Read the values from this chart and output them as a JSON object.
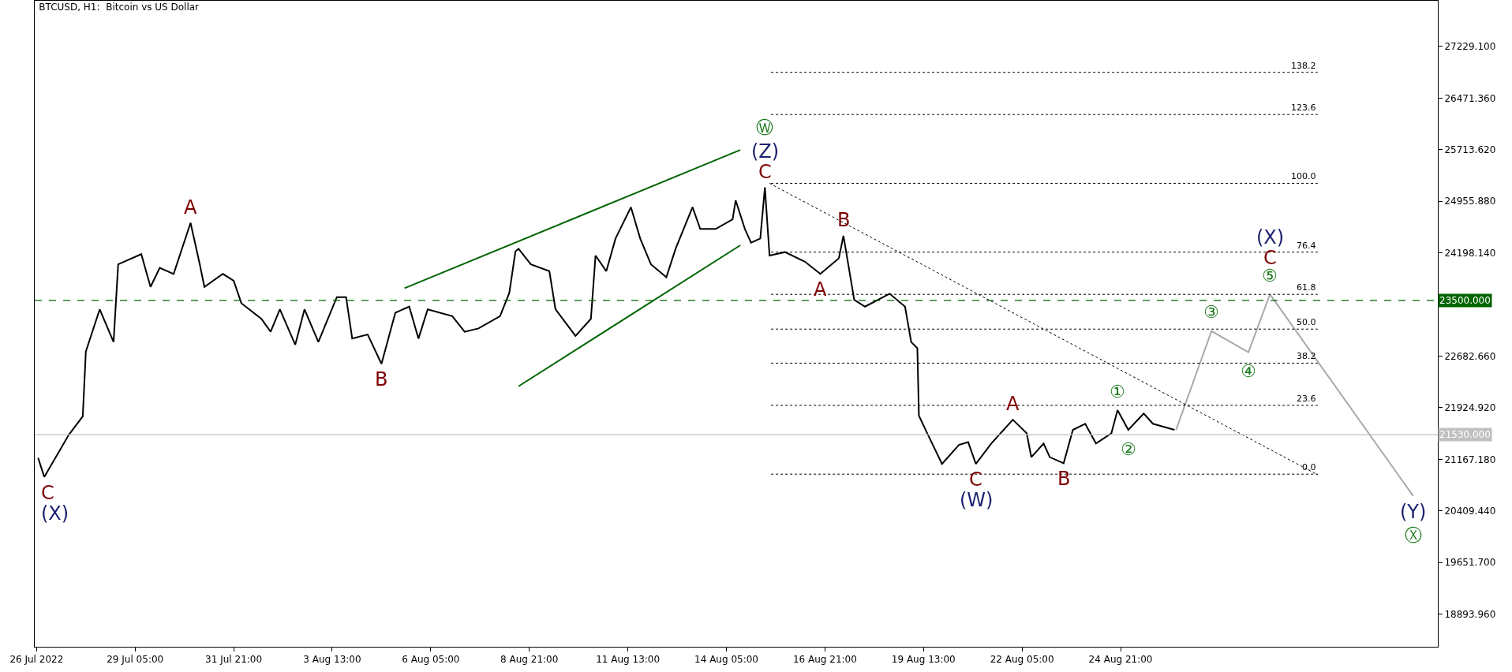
{
  "chart_data": {
    "type": "line",
    "title": "BTCUSD, H1:  Bitcoin vs US Dollar",
    "xlim": [
      "2022-07-26T11:48",
      "2022-09-02T11:00"
    ],
    "ylim": [
      18416,
      27900
    ],
    "xticks": [
      {
        "value": "2022-07-26T13:00",
        "label": "26 Jul 2022"
      },
      {
        "value": "2022-07-29T05:00",
        "label": "29 Jul 05:00"
      },
      {
        "value": "2022-07-31T21:00",
        "label": "31 Jul 21:00"
      },
      {
        "value": "2022-08-03T13:00",
        "label": "3 Aug 13:00"
      },
      {
        "value": "2022-08-06T05:00",
        "label": "6 Aug 05:00"
      },
      {
        "value": "2022-08-08T21:00",
        "label": "8 Aug 21:00"
      },
      {
        "value": "2022-08-11T13:00",
        "label": "11 Aug 13:00"
      },
      {
        "value": "2022-08-14T05:00",
        "label": "14 Aug 05:00"
      },
      {
        "value": "2022-08-16T21:00",
        "label": "16 Aug 21:00"
      },
      {
        "value": "2022-08-19T13:00",
        "label": "19 Aug 13:00"
      },
      {
        "value": "2022-08-22T05:00",
        "label": "22 Aug 05:00"
      },
      {
        "value": "2022-08-24T21:00",
        "label": "24 Aug 21:00"
      }
    ],
    "yticks": [
      {
        "value": 18893.96,
        "label": "18893.960"
      },
      {
        "value": 19651.7,
        "label": "19651.700"
      },
      {
        "value": 20409.44,
        "label": "20409.440"
      },
      {
        "value": 21167.18,
        "label": "21167.180"
      },
      {
        "value": 21924.92,
        "label": "21924.920"
      },
      {
        "value": 22682.66,
        "label": "22682.660"
      },
      {
        "value": 24198.14,
        "label": "24198.140"
      },
      {
        "value": 24955.88,
        "label": "24955.880"
      },
      {
        "value": 25713.62,
        "label": "25713.620"
      },
      {
        "value": 26471.36,
        "label": "26471.360"
      },
      {
        "value": 27229.1,
        "label": "27229.100"
      }
    ],
    "grid": false,
    "legend": false,
    "marker": "none",
    "series": [
      {
        "color": "#000000",
        "line_style": "solid",
        "x": [
          "2022-07-26T14:00",
          "2022-07-26T18:00",
          "2022-07-27T10:00",
          "2022-07-27T19:00",
          "2022-07-27T21:00",
          "2022-07-28T06:00",
          "2022-07-28T15:00",
          "2022-07-28T18:00",
          "2022-07-29T09:00",
          "2022-07-29T15:00",
          "2022-07-29T21:00",
          "2022-07-30T06:00",
          "2022-07-30T17:00",
          "2022-07-30T23:00",
          "2022-07-31T02:00",
          "2022-07-31T14:00",
          "2022-07-31T21:00",
          "2022-08-01T02:00",
          "2022-08-01T15:00",
          "2022-08-01T21:00",
          "2022-08-02T03:00",
          "2022-08-02T13:00",
          "2022-08-02T19:00",
          "2022-08-03T04:00",
          "2022-08-03T16:00",
          "2022-08-03T22:00",
          "2022-08-04T02:00",
          "2022-08-04T12:00",
          "2022-08-04T21:00",
          "2022-08-05T06:00",
          "2022-08-05T15:00",
          "2022-08-05T21:00",
          "2022-08-06T03:00",
          "2022-08-06T19:00",
          "2022-08-07T03:00",
          "2022-08-07T12:00",
          "2022-08-08T02:00",
          "2022-08-08T08:00",
          "2022-08-08T12:00",
          "2022-08-08T14:00",
          "2022-08-08T22:00",
          "2022-08-09T10:00",
          "2022-08-09T14:00",
          "2022-08-10T03:00",
          "2022-08-10T13:00",
          "2022-08-10T16:00",
          "2022-08-10T23:00",
          "2022-08-11T05:00",
          "2022-08-11T15:00",
          "2022-08-11T21:00",
          "2022-08-12T04:00",
          "2022-08-12T14:00",
          "2022-08-12T20:00",
          "2022-08-13T07:00",
          "2022-08-13T12:00",
          "2022-08-13T22:00",
          "2022-08-14T09:00",
          "2022-08-14T11:00",
          "2022-08-14T17:00",
          "2022-08-14T21:00",
          "2022-08-15T03:00",
          "2022-08-15T06:00",
          "2022-08-15T09:00",
          "2022-08-15T19:00",
          "2022-08-16T08:00",
          "2022-08-16T18:00",
          "2022-08-17T06:00",
          "2022-08-17T09:00",
          "2022-08-17T16:00",
          "2022-08-17T23:00",
          "2022-08-18T15:00",
          "2022-08-19T01:00",
          "2022-08-19T05:00",
          "2022-08-19T09:00",
          "2022-08-19T10:00",
          "2022-08-19T15:00",
          "2022-08-20T01:00",
          "2022-08-20T12:00",
          "2022-08-20T18:00",
          "2022-08-20T23:00",
          "2022-08-21T09:00",
          "2022-08-21T23:00",
          "2022-08-22T08:00",
          "2022-08-22T11:00",
          "2022-08-22T19:00",
          "2022-08-22T23:00",
          "2022-08-23T08:00",
          "2022-08-23T14:00",
          "2022-08-23T22:00",
          "2022-08-24T05:00",
          "2022-08-24T15:00",
          "2022-08-24T19:00",
          "2022-08-25T02:00",
          "2022-08-25T12:00",
          "2022-08-25T18:00",
          "2022-08-26T08:00"
        ],
        "values": [
          21190,
          20910,
          21530,
          21800,
          22750,
          23370,
          22890,
          24030,
          24180,
          23700,
          23980,
          23890,
          24640,
          24030,
          23700,
          23890,
          23790,
          23460,
          23230,
          23040,
          23370,
          22850,
          23370,
          22890,
          23550,
          23550,
          22940,
          23000,
          22570,
          23320,
          23410,
          22940,
          23370,
          23270,
          23040,
          23090,
          23270,
          23610,
          24220,
          24260,
          24030,
          23930,
          23370,
          22980,
          23230,
          24160,
          23930,
          24410,
          24870,
          24410,
          24030,
          23840,
          24260,
          24870,
          24550,
          24550,
          24690,
          24970,
          24550,
          24350,
          24410,
          25160,
          24160,
          24210,
          24070,
          23890,
          24120,
          24450,
          23510,
          23410,
          23600,
          23410,
          22890,
          22800,
          21810,
          21570,
          21100,
          21380,
          21420,
          21100,
          21400,
          21750,
          21550,
          21200,
          21400,
          21200,
          21110,
          21600,
          21690,
          21400,
          21550,
          21890,
          21600,
          21840,
          21690,
          21600
        ]
      },
      {
        "color": "#a9a9a9",
        "line_style": "solid",
        "x": [
          "2022-08-26T09:00",
          "2022-08-27T08:00",
          "2022-08-28T08:00",
          "2022-08-28T22:00",
          "2022-09-01T19:00"
        ],
        "values": [
          21600,
          23050,
          22740,
          23590,
          20630
        ]
      },
      {
        "color": "#006400",
        "line_style": "solid",
        "x": [
          "2022-08-05T12:00",
          "2022-08-14T14:00"
        ],
        "values": [
          23680,
          25710
        ]
      },
      {
        "color": "#006400",
        "line_style": "solid",
        "x": [
          "2022-08-08T14:00",
          "2022-08-14T14:00"
        ],
        "values": [
          22240,
          24310
        ]
      },
      {
        "color": "#000000",
        "line_style": "dotted",
        "x": [
          "2022-08-15T09:00",
          "2022-08-30T05:00"
        ],
        "values": [
          25220,
          20940
        ]
      },
      {
        "name": "138.2",
        "color": "#000000",
        "line_style": "dotted",
        "x": [
          "2022-08-15T10:00",
          "2022-08-30T05:00"
        ],
        "values": [
          26850,
          26850
        ]
      },
      {
        "name": "123.6",
        "color": "#000000",
        "line_style": "dotted",
        "x": [
          "2022-08-15T10:00",
          "2022-08-30T05:00"
        ],
        "values": [
          26230,
          26230
        ]
      },
      {
        "name": "100.0",
        "color": "#000000",
        "line_style": "dotted",
        "x": [
          "2022-08-15T10:00",
          "2022-08-30T05:00"
        ],
        "values": [
          25220,
          25220
        ]
      },
      {
        "name": "76.4",
        "color": "#000000",
        "line_style": "dotted",
        "x": [
          "2022-08-15T10:00",
          "2022-08-30T05:00"
        ],
        "values": [
          24210,
          24210
        ]
      },
      {
        "name": "61.8",
        "color": "#000000",
        "line_style": "dotted",
        "x": [
          "2022-08-15T10:00",
          "2022-08-30T05:00"
        ],
        "values": [
          23590,
          23590
        ]
      },
      {
        "name": "50.0",
        "color": "#000000",
        "line_style": "dotted",
        "x": [
          "2022-08-15T10:00",
          "2022-08-30T05:00"
        ],
        "values": [
          23080,
          23080
        ]
      },
      {
        "name": "38.2",
        "color": "#000000",
        "line_style": "dotted",
        "x": [
          "2022-08-15T10:00",
          "2022-08-30T05:00"
        ],
        "values": [
          22580,
          22580
        ]
      },
      {
        "name": "23.6",
        "color": "#000000",
        "line_style": "dotted",
        "x": [
          "2022-08-15T10:00",
          "2022-08-30T05:00"
        ],
        "values": [
          21960,
          21960
        ]
      },
      {
        "name": "0.0",
        "color": "#000000",
        "line_style": "dotted",
        "x": [
          "2022-08-15T10:00",
          "2022-08-30T05:00"
        ],
        "values": [
          20950,
          20950
        ]
      }
    ],
    "ref_lines": [
      {
        "axis": "y",
        "value": 23500,
        "label": "23500.000",
        "color": "#006400",
        "line_style": "dashed"
      },
      {
        "axis": "y",
        "value": 21530,
        "label": "21530.000",
        "color": "#c0c0c0",
        "line_style": "solid"
      }
    ],
    "annotations": [
      {
        "text": "C",
        "x": "2022-07-26T18:00",
        "y": 20910
      },
      {
        "text": "(X)",
        "x": "2022-07-26T18:00",
        "y": 20910
      },
      {
        "text": "A",
        "x": "2022-07-30T17:00",
        "y": 24640
      },
      {
        "text": "B",
        "x": "2022-08-04T21:00",
        "y": 22570
      },
      {
        "text": "C",
        "x": "2022-08-15T06:00",
        "y": 25160
      },
      {
        "text": "(Z)",
        "x": "2022-08-15T06:00",
        "y": 25160
      },
      {
        "text": "Ⓦ",
        "x": "2022-08-15T06:00",
        "y": 25160
      },
      {
        "text": "B",
        "x": "2022-08-17T09:00",
        "y": 24450
      },
      {
        "text": "A",
        "x": "2022-08-16T18:00",
        "y": 23890
      },
      {
        "text": "A",
        "x": "2022-08-21T23:00",
        "y": 21750
      },
      {
        "text": "C",
        "x": "2022-08-20T23:00",
        "y": 21100
      },
      {
        "text": "(W)",
        "x": "2022-08-20T23:00",
        "y": 21100
      },
      {
        "text": "B",
        "x": "2022-08-23T08:00",
        "y": 21110
      },
      {
        "text": "①",
        "x": "2022-08-24T19:00",
        "y": 21890
      },
      {
        "text": "②",
        "x": "2022-08-25T02:00",
        "y": 21600
      },
      {
        "text": "③",
        "x": "2022-08-27T08:00",
        "y": 23050
      },
      {
        "text": "④",
        "x": "2022-08-28T08:00",
        "y": 22740
      },
      {
        "text": "⑤",
        "x": "2022-08-28T22:00",
        "y": 23590
      },
      {
        "text": "C",
        "x": "2022-08-28T22:00",
        "y": 23590
      },
      {
        "text": "(X)",
        "x": "2022-08-28T22:00",
        "y": 23590
      },
      {
        "text": "(Y)",
        "x": "2022-09-01T19:00",
        "y": 20630
      },
      {
        "text": "Ⓧ",
        "x": "2022-09-01T19:00",
        "y": 20630
      }
    ]
  }
}
